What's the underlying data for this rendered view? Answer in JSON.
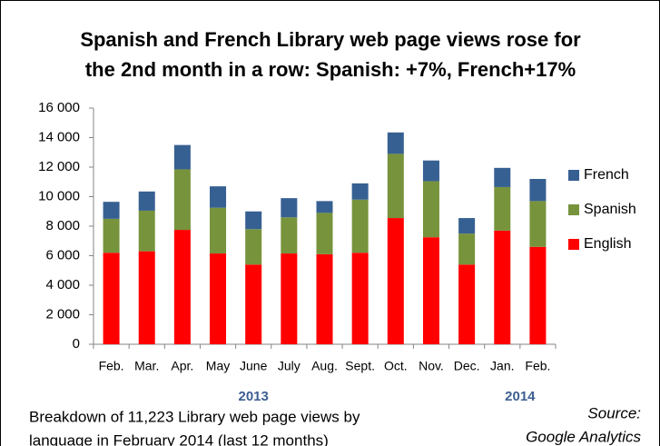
{
  "chart_data": {
    "type": "bar",
    "stacked": true,
    "title_lines": [
      "Spanish and French Library web page views rose for",
      "the 2nd month in a row: Spanish: +7%, French+17%"
    ],
    "categories": [
      "Feb.",
      "Mar.",
      "Apr.",
      "May",
      "June",
      "July",
      "Aug.",
      "Sept.",
      "Oct.",
      "Nov.",
      "Dec.",
      "Jan.",
      "Feb."
    ],
    "year_labels": [
      {
        "label": "2013",
        "category": 4
      },
      {
        "label": "2014",
        "category": 11.5
      }
    ],
    "series": [
      {
        "name": "English",
        "color": "#ff0000",
        "values": [
          6200,
          6300,
          7750,
          6150,
          5400,
          6150,
          6100,
          6200,
          8550,
          7250,
          5400,
          7700,
          6600
        ]
      },
      {
        "name": "Spanish",
        "color": "#77933c",
        "values": [
          2300,
          2750,
          4100,
          3100,
          2400,
          2450,
          2800,
          3600,
          4350,
          3800,
          2100,
          2950,
          3100
        ]
      },
      {
        "name": "French",
        "color": "#376092",
        "values": [
          1150,
          1300,
          1650,
          1450,
          1200,
          1300,
          800,
          1100,
          1450,
          1400,
          1050,
          1300,
          1500
        ]
      }
    ],
    "ylim": [
      0,
      16000
    ],
    "yticks": [
      0,
      {
        "value": 2000,
        "label": "2 000"
      },
      {
        "value": 4000,
        "label": "4 000"
      },
      {
        "value": 6000,
        "label": "6 000"
      },
      {
        "value": 8000,
        "label": "8 000"
      },
      {
        "value": 10000,
        "label": "10 000"
      },
      {
        "value": 12000,
        "label": "12 000"
      },
      {
        "value": 14000,
        "label": "14 000"
      },
      {
        "value": 16000,
        "label": "16 000"
      }
    ],
    "grid": false,
    "legend": "right",
    "note_lines": [
      "Breakdown of 11,223 Library web page views by",
      "language in February 2014 (last 12 months)"
    ],
    "source_lines": [
      "Source:",
      "Google Analytics"
    ]
  }
}
